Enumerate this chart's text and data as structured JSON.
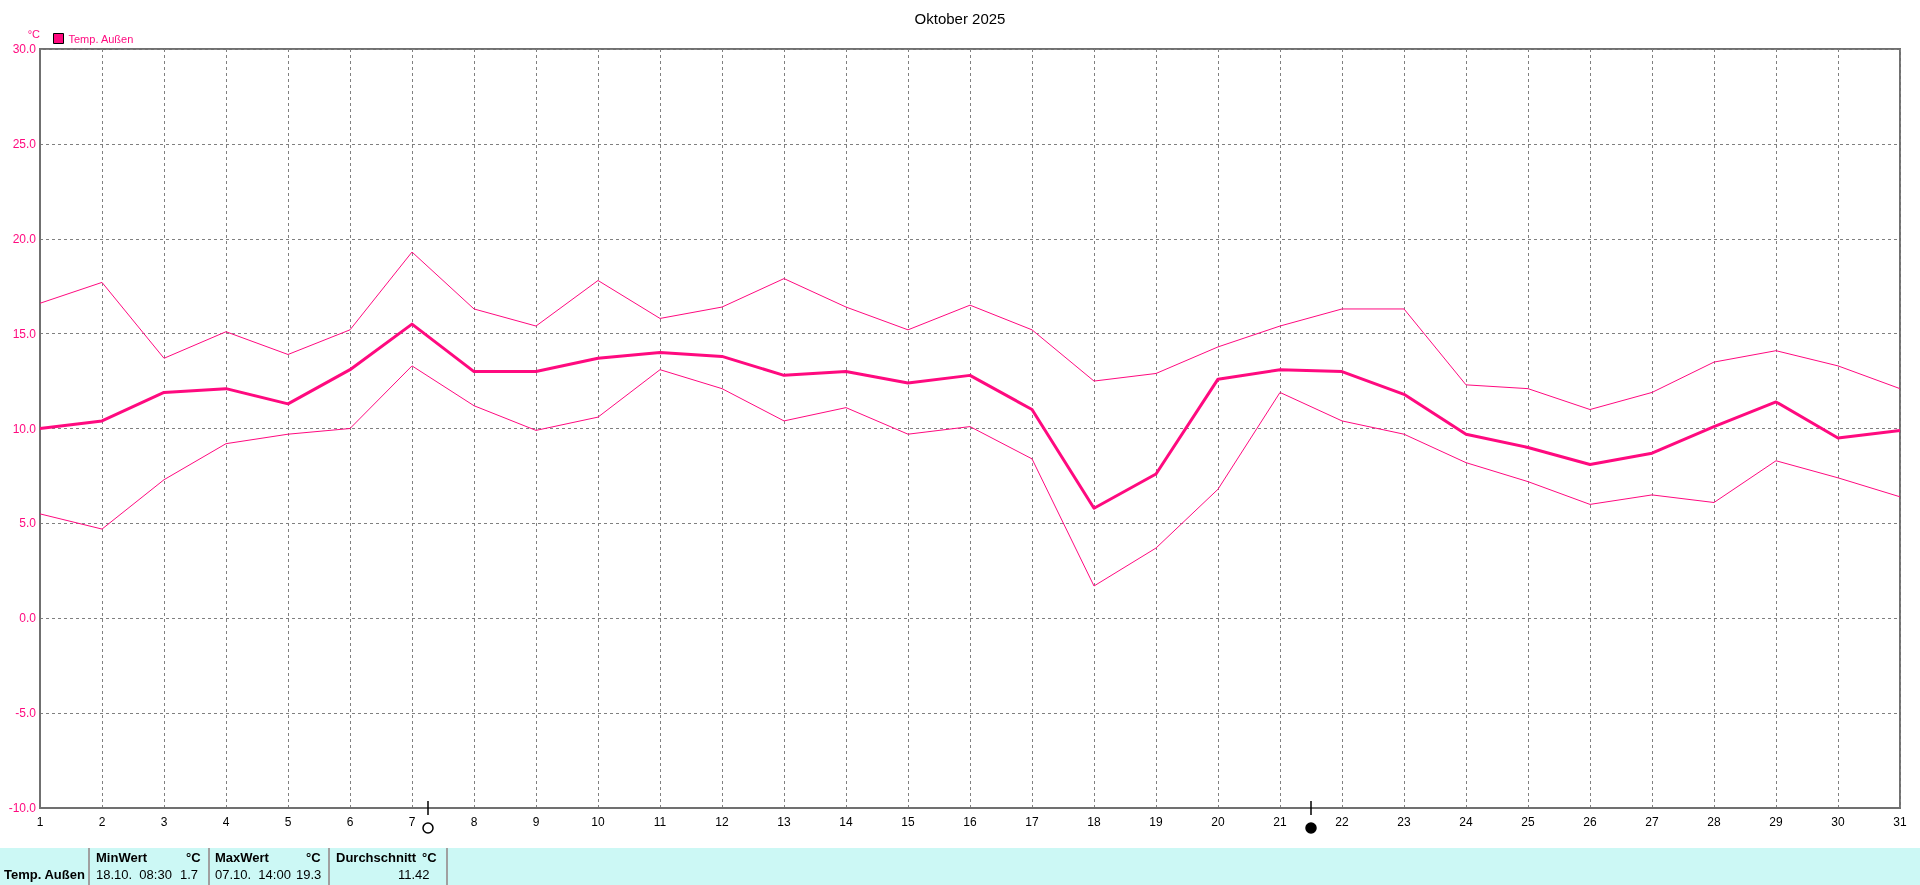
{
  "chart_data": {
    "type": "line",
    "title": "Oktober 2025",
    "ylabel": "°C",
    "x": [
      1,
      2,
      3,
      4,
      5,
      6,
      7,
      8,
      9,
      10,
      11,
      12,
      13,
      14,
      15,
      16,
      17,
      18,
      19,
      20,
      21,
      22,
      23,
      24,
      25,
      26,
      27,
      28,
      29,
      30,
      31
    ],
    "series": [
      {
        "color": "#ff0a7f",
        "values": [
          16.6,
          17.7,
          13.7,
          15.1,
          13.9,
          15.2,
          19.3,
          16.3,
          15.4,
          17.8,
          15.8,
          16.4,
          17.9,
          16.4,
          15.2,
          16.5,
          15.2,
          12.5,
          12.9,
          14.3,
          15.4,
          16.3,
          16.3,
          12.3,
          12.1,
          11.0,
          11.9,
          13.5,
          14.1,
          13.3,
          12.1
        ]
      },
      {
        "name": "Temp. Außen",
        "color": "#ff0a7f",
        "values": [
          10.0,
          10.4,
          11.9,
          12.1,
          11.3,
          13.1,
          15.5,
          13.0,
          13.0,
          13.7,
          14.0,
          13.8,
          12.8,
          13.0,
          12.4,
          12.8,
          11.0,
          5.8,
          7.6,
          12.6,
          13.1,
          13.0,
          11.8,
          9.7,
          9.0,
          8.1,
          8.7,
          10.1,
          11.4,
          9.5,
          9.9
        ]
      },
      {
        "color": "#ff0a7f",
        "values": [
          5.5,
          4.7,
          7.3,
          9.2,
          9.7,
          10.0,
          13.3,
          11.2,
          9.9,
          10.6,
          13.1,
          12.1,
          10.4,
          11.1,
          9.7,
          10.1,
          8.4,
          1.7,
          3.7,
          6.8,
          11.9,
          10.4,
          9.7,
          8.2,
          7.2,
          6.0,
          6.5,
          6.1,
          8.3,
          7.4,
          6.4
        ]
      }
    ],
    "xlim": [
      1,
      31
    ],
    "xticks": [
      1,
      2,
      3,
      4,
      5,
      6,
      7,
      8,
      9,
      10,
      11,
      12,
      13,
      14,
      15,
      16,
      17,
      18,
      19,
      20,
      21,
      22,
      23,
      24,
      25,
      26,
      27,
      28,
      29,
      30,
      31
    ],
    "ylim": [
      -10,
      30
    ],
    "yticks": [
      {
        "value": -10,
        "label": "-10.0"
      },
      {
        "value": -5,
        "label": "-5.0"
      },
      {
        "value": 0,
        "label": "0.0"
      },
      {
        "value": 5,
        "label": "5.0"
      },
      {
        "value": 10,
        "label": "10.0"
      },
      {
        "value": 15,
        "label": "15.0"
      },
      {
        "value": 20,
        "label": "20.0"
      },
      {
        "value": 25,
        "label": "25.0"
      },
      {
        "value": 30,
        "label": "30.0"
      }
    ],
    "grid": true,
    "legend": "top left",
    "marker": "none",
    "line_style": "solid",
    "annotations": [
      "Temp. Außen",
      "MinWert",
      "°C",
      "18.10.  08:30",
      "1.7",
      "MaxWert",
      "°C",
      "07.10.  14:00",
      "19.3",
      "Durchschnitt",
      "°C",
      "11.42"
    ]
  }
}
